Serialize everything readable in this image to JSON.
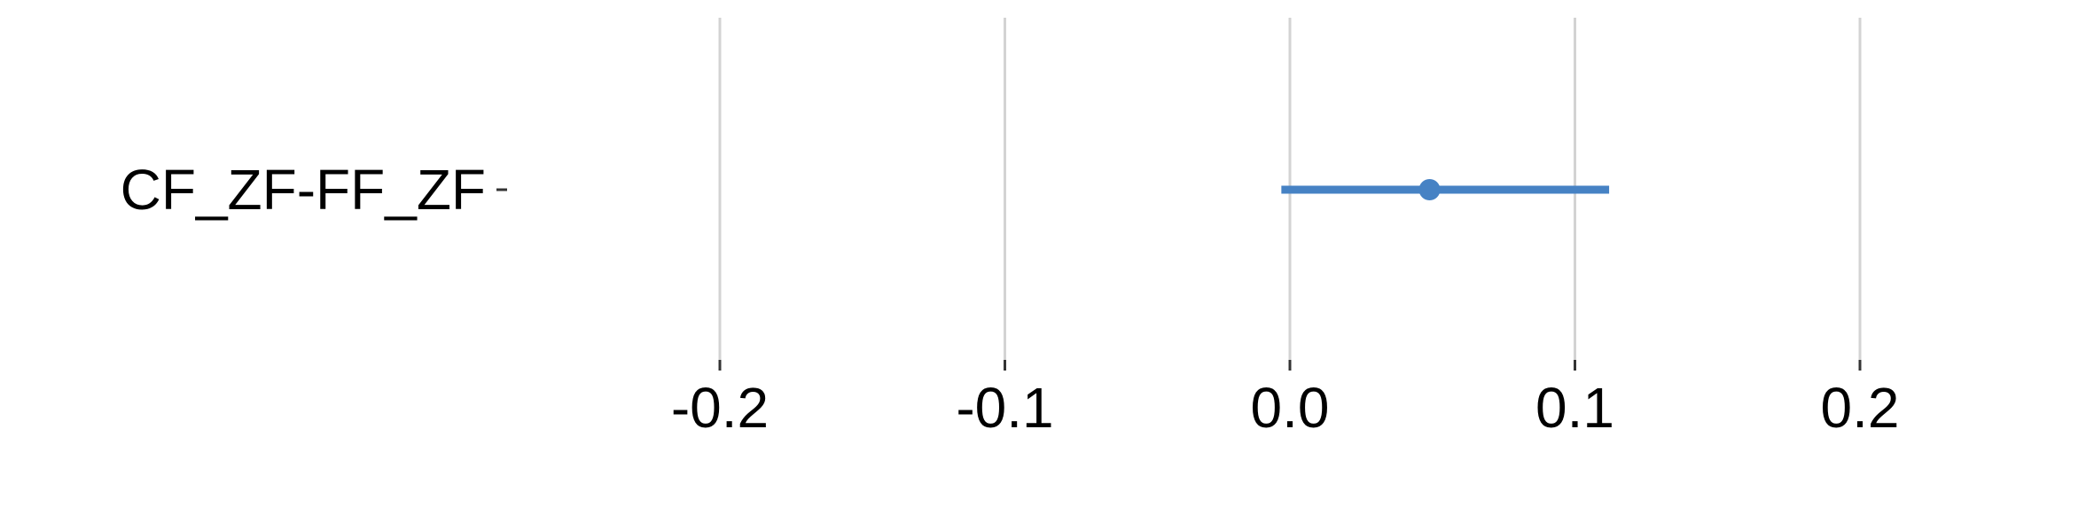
{
  "chart_data": {
    "type": "scatter",
    "subtype": "forest-plot",
    "title": "",
    "xlabel": "",
    "ylabel": "",
    "xlim": [
      -0.2,
      0.2
    ],
    "x_ticks": [
      -0.2,
      -0.1,
      0.0,
      0.1,
      0.2
    ],
    "x_tick_labels": [
      "-0.2",
      "-0.1",
      "0.0",
      "0.1",
      "0.2"
    ],
    "grid": true,
    "legend": "none",
    "categories": [
      "CF_ZF-FF_ZF"
    ],
    "series": [
      {
        "color": "#4682c4",
        "points": [
          {
            "label": "CF_ZF-FF_ZF",
            "estimate": 0.049,
            "lower": -0.003,
            "upper": 0.112
          }
        ]
      }
    ]
  },
  "colors": {
    "gridline": "#d3d3d3",
    "point": "#4682c4",
    "tick": "#333333",
    "text": "#000000"
  }
}
